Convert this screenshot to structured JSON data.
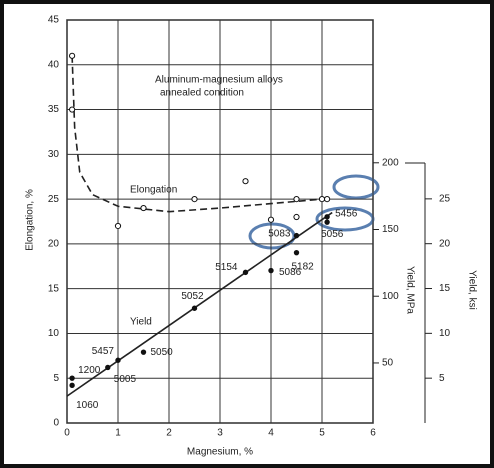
{
  "chart_data": {
    "type": "scatter",
    "annotation": [
      "Aluminum-magnesium alloys",
      "annealed condition"
    ],
    "xlabel": "Magnesium, %",
    "ylabel": "Elongation, %",
    "y2label": "Yield, MPa",
    "y3label": "Yield, ksi",
    "xlim": [
      0,
      6
    ],
    "xticks": [
      0,
      1,
      2,
      3,
      4,
      5,
      6
    ],
    "ylim": [
      0,
      45
    ],
    "yticks": [
      0,
      5,
      10,
      15,
      20,
      25,
      30,
      35,
      40,
      45
    ],
    "y2lim": [
      5,
      307
    ],
    "y2ticks": [
      50,
      100,
      150,
      200
    ],
    "y3lim": [
      0,
      29
    ],
    "y3ticks": [
      5,
      10,
      15,
      20,
      25
    ],
    "grid": true,
    "curves": [
      {
        "name": "Elongation",
        "dashed": true,
        "color": "#222",
        "x": [
          0.1,
          0.15,
          0.25,
          0.5,
          1,
          2,
          3,
          4,
          5
        ],
        "values": [
          41,
          33,
          28,
          25.5,
          24.2,
          23.6,
          24,
          24.5,
          25
        ]
      },
      {
        "name": "Yield",
        "dashed": false,
        "color": "#222",
        "x": [
          0,
          5.2
        ],
        "values": [
          3,
          23.5
        ]
      }
    ],
    "series": [
      {
        "name": "Elongation",
        "marker": "open",
        "axis": "y",
        "x": [
          0.1,
          0.1,
          1,
          1.5,
          2.5,
          3.5,
          4,
          4.5,
          4.5,
          5,
          5.1
        ],
        "values": [
          41,
          35,
          22,
          24,
          25,
          27,
          22.7,
          25,
          23,
          25,
          25
        ]
      },
      {
        "name": "Yield",
        "marker": "filled",
        "axis": "y3",
        "x": [
          0.1,
          0.1,
          0.8,
          1,
          1.5,
          2.5,
          3.5,
          4,
          4.5,
          4.5,
          5.1,
          5.1
        ],
        "values": [
          5,
          4.2,
          6.2,
          7,
          7.9,
          12.8,
          16.8,
          17,
          20.9,
          19,
          22.4,
          23
        ],
        "labels": [
          "1200",
          "1060",
          "5005",
          "5457",
          "5050",
          "5052",
          "5154",
          "5086",
          "5083",
          "5182",
          "5056",
          "5456"
        ]
      }
    ]
  }
}
